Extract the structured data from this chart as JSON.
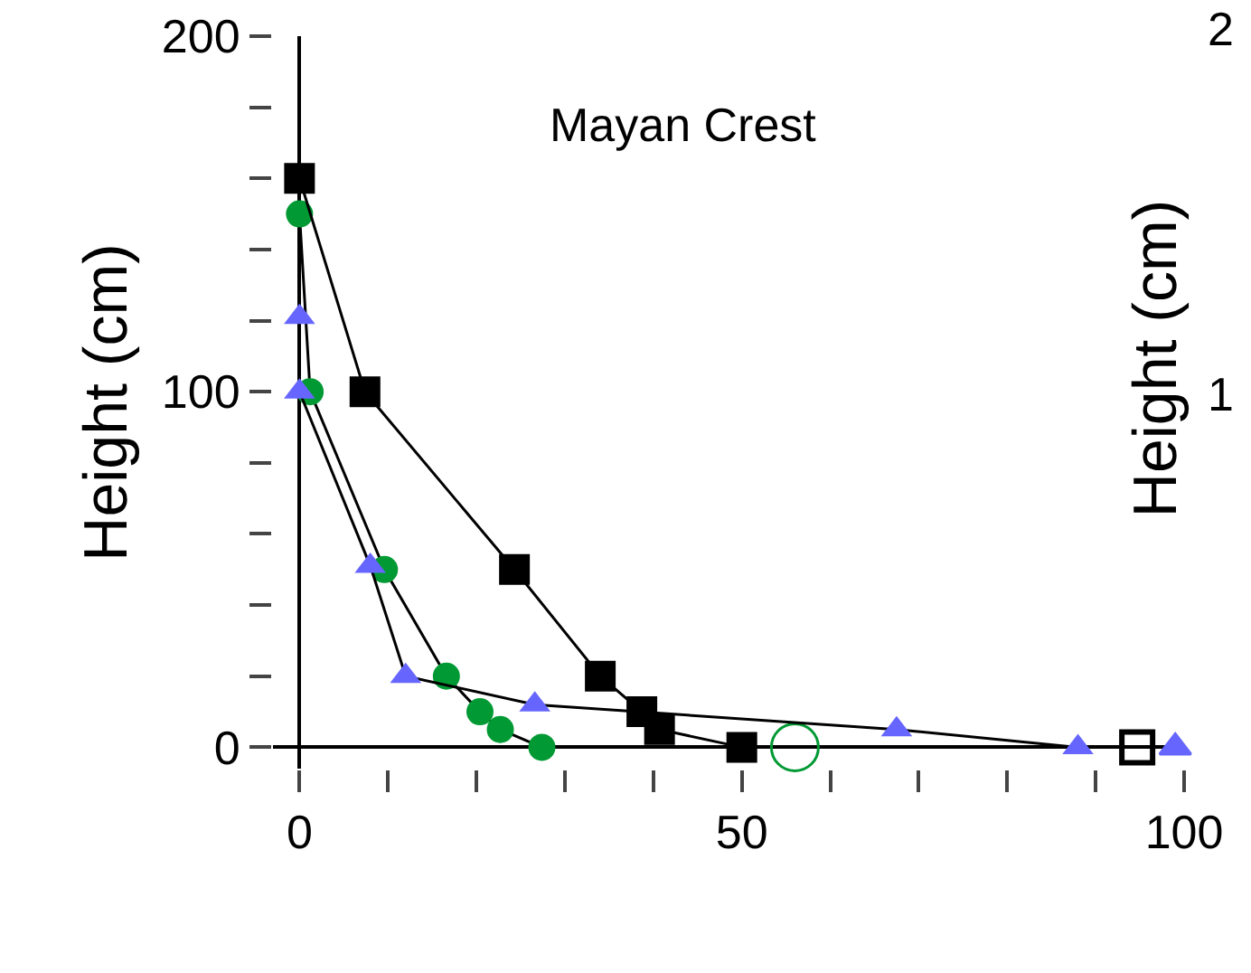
{
  "chart_data": {
    "type": "line",
    "title": "Mayan Crest",
    "ylabel": "Height (cm)",
    "annotations": [
      "2",
      "1",
      "Height (cm)"
    ],
    "line_style": "solid",
    "xlim": [
      -3,
      100
    ],
    "ylim": [
      -6,
      200
    ],
    "xticks": [
      0,
      {
        "value": 10,
        "label": null
      },
      {
        "value": 20,
        "label": null
      },
      {
        "value": 30,
        "label": null
      },
      {
        "value": 40,
        "label": null
      },
      50,
      {
        "value": 60,
        "label": null
      },
      {
        "value": 70,
        "label": null
      },
      {
        "value": 80,
        "label": null
      },
      {
        "value": 90,
        "label": null
      },
      100
    ],
    "yticks": [
      0,
      {
        "value": 20,
        "label": null
      },
      {
        "value": 40,
        "label": null
      },
      {
        "value": 60,
        "label": null
      },
      {
        "value": 80,
        "label": null
      },
      100,
      {
        "value": 120,
        "label": null
      },
      {
        "value": 140,
        "label": null
      },
      {
        "value": 160,
        "label": null
      },
      {
        "value": 180,
        "label": null
      },
      200
    ],
    "series": [
      {
        "marker": "square",
        "color": "#000000",
        "x": [
          0,
          7.4,
          24.3,
          34,
          38.7,
          40.7,
          50
        ],
        "values": [
          160,
          100,
          50,
          20,
          10,
          5,
          0
        ]
      },
      {
        "marker": "triangle",
        "color": "#6666ff",
        "x": [
          0,
          0,
          8,
          12,
          26.6,
          67.5,
          88
        ],
        "values": [
          121,
          100,
          51,
          20,
          12,
          5,
          0
        ]
      },
      {
        "marker": "circle",
        "color": "#009933",
        "x": [
          0,
          1.2,
          9.6,
          16.6,
          20.4,
          22.7,
          27.4
        ],
        "values": [
          150,
          100,
          50,
          20,
          10,
          5,
          0
        ]
      },
      {
        "type": "scatter",
        "marker": "triangle",
        "color": "#6666ff",
        "x": [
          99
        ],
        "values": [
          0
        ]
      },
      {
        "type": "scatter",
        "marker": "circle",
        "color": "#009933",
        "x": [
          56
        ],
        "values": [
          0
        ]
      },
      {
        "type": "scatter",
        "marker": "square",
        "color": "#000000",
        "x": [
          94.7
        ],
        "values": [
          0
        ]
      }
    ]
  }
}
